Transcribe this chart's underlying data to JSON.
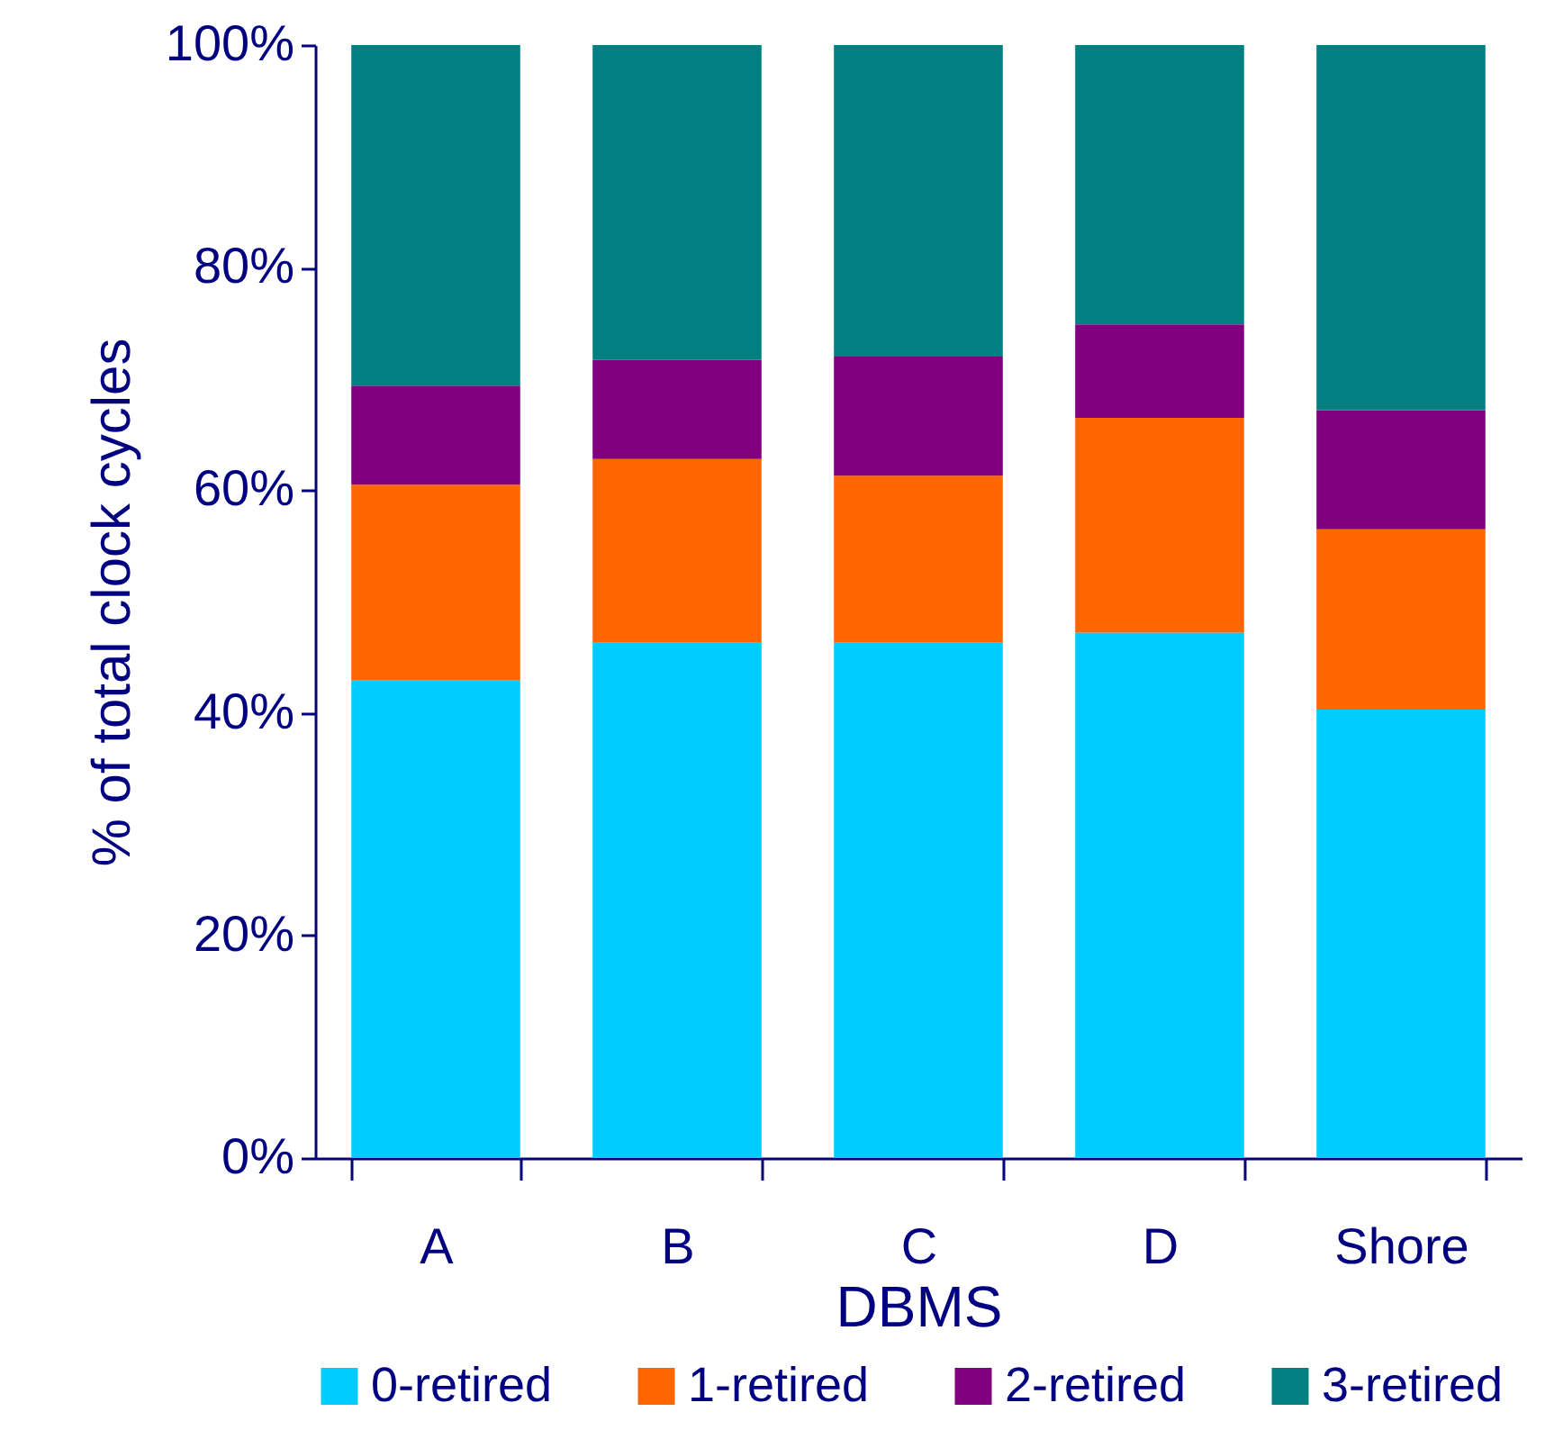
{
  "chart_data": {
    "type": "bar",
    "stacked": true,
    "xlabel": "DBMS",
    "ylabel": "% of total clock cycles",
    "categories": [
      "A",
      "B",
      "C",
      "D",
      "Shore"
    ],
    "series": [
      {
        "name": "0-retired",
        "color": "#00ccff",
        "values": [
          42.9,
          46.3,
          46.3,
          47.2,
          40.3
        ]
      },
      {
        "name": "1-retired",
        "color": "#ff6600",
        "values": [
          17.6,
          16.5,
          15.0,
          19.3,
          16.2
        ]
      },
      {
        "name": "2-retired",
        "color": "#800080",
        "values": [
          8.9,
          8.9,
          10.7,
          8.4,
          10.7
        ]
      },
      {
        "name": "3-retired",
        "color": "#008080",
        "values": [
          30.6,
          28.3,
          28.0,
          25.1,
          32.8
        ]
      }
    ],
    "ylim": [
      0,
      100
    ],
    "yticks": [
      {
        "value": 0,
        "label": "0%"
      },
      {
        "value": 20,
        "label": "20%"
      },
      {
        "value": 40,
        "label": "40%"
      },
      {
        "value": 60,
        "label": "60%"
      },
      {
        "value": 80,
        "label": "80%"
      },
      {
        "value": 100,
        "label": "100%"
      }
    ],
    "grid": false,
    "legend": "bottom"
  }
}
